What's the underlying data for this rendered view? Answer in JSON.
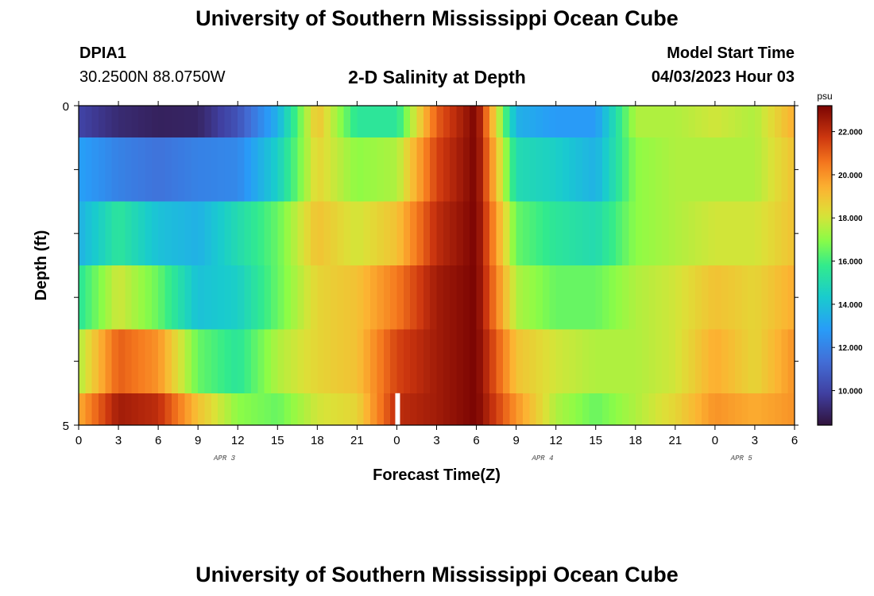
{
  "header": {
    "title": "University of Southern Mississippi Ocean Cube",
    "station": "DPIA1",
    "coordinates": "30.2500N  88.0750W",
    "subtitle": "2-D Salinity at Depth",
    "model_start_label": "Model Start Time",
    "model_start_value": "04/03/2023 Hour 03"
  },
  "footer": {
    "title": "University of Southern Mississippi Ocean Cube"
  },
  "chart_data": {
    "type": "heatmap",
    "title": "2-D Salinity at Depth",
    "xlabel": "Forecast Time(Z)",
    "ylabel": "Depth (ft)",
    "x_ticks": [
      "0",
      "3",
      "6",
      "9",
      "12",
      "15",
      "18",
      "21",
      "0",
      "3",
      "6",
      "9",
      "12",
      "15",
      "18",
      "21",
      "0",
      "3",
      "6"
    ],
    "date_labels": [
      {
        "label": "APR 3",
        "hours": 11
      },
      {
        "label": "APR 4",
        "hours": 35
      },
      {
        "label": "APR 5",
        "hours": 50
      }
    ],
    "y_tick_labels": [
      {
        "value": 0,
        "label": "0"
      },
      {
        "value": 5,
        "label": "5"
      }
    ],
    "ylim": [
      0,
      5
    ],
    "xlim_hours": [
      0,
      54
    ],
    "colorbar": {
      "unit": "psu",
      "min": 8.4,
      "max": 23.2,
      "ticks": [
        "10.000",
        "12.000",
        "14.000",
        "16.000",
        "18.000",
        "20.000",
        "22.000"
      ]
    },
    "missing_marker_hours": 24,
    "depth_bins": [
      "0-0.5",
      "0.5-1.5",
      "1.5-2.5",
      "2.5-3.5",
      "3.5-4.5",
      "4.5-5"
    ],
    "time_hours": [
      0,
      3,
      6,
      9,
      12,
      15,
      18,
      21,
      24,
      27,
      30,
      33,
      36,
      39,
      42,
      45,
      48,
      51,
      54
    ],
    "values": [
      [
        10.0,
        9.2,
        8.9,
        9.0,
        10.5,
        13.5,
        19.0,
        15.5,
        15.5,
        21.0,
        23.2,
        13.5,
        12.8,
        12.8,
        17.5,
        17.5,
        18.0,
        17.5,
        19.5
      ],
      [
        13.0,
        12.0,
        11.5,
        12.0,
        12.2,
        14.5,
        18.5,
        17.0,
        17.5,
        21.5,
        23.2,
        15.0,
        14.5,
        13.5,
        17.0,
        17.5,
        17.5,
        17.5,
        19.0
      ],
      [
        13.5,
        15.5,
        14.0,
        13.5,
        15.0,
        16.5,
        19.0,
        18.0,
        19.0,
        22.0,
        23.2,
        16.5,
        15.5,
        15.0,
        17.0,
        17.5,
        18.0,
        18.0,
        19.0
      ],
      [
        15.5,
        18.0,
        16.5,
        14.0,
        14.5,
        16.5,
        18.5,
        19.0,
        20.5,
        22.5,
        23.2,
        17.5,
        16.5,
        16.5,
        17.5,
        18.0,
        19.0,
        18.5,
        19.5
      ],
      [
        17.5,
        21.0,
        20.0,
        16.5,
        15.5,
        17.5,
        18.5,
        19.0,
        21.5,
        22.5,
        23.2,
        19.0,
        18.0,
        17.5,
        17.5,
        18.0,
        19.5,
        18.5,
        20.0
      ],
      [
        19.5,
        22.5,
        22.0,
        19.0,
        17.0,
        16.5,
        18.0,
        18.5,
        22.0,
        22.5,
        23.2,
        20.0,
        17.5,
        16.5,
        17.5,
        18.5,
        20.0,
        19.5,
        20.0
      ]
    ]
  }
}
